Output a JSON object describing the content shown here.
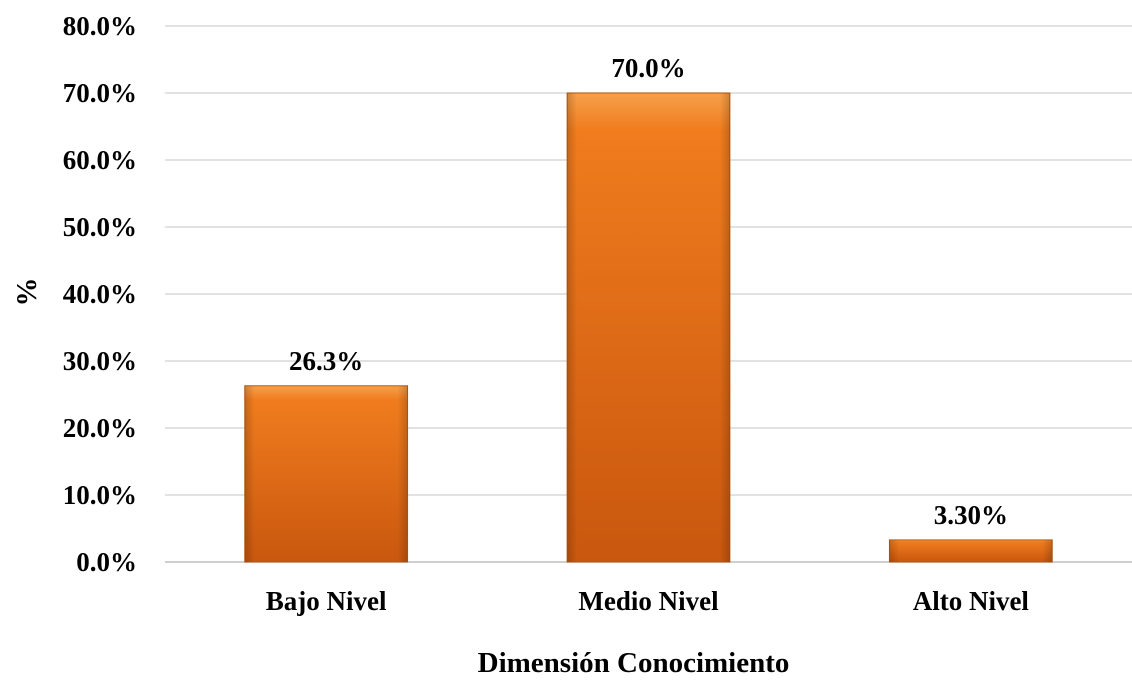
{
  "chart_data": {
    "type": "bar",
    "categories": [
      "Bajo Nivel",
      "Medio Nivel",
      "Alto Nivel"
    ],
    "values": [
      26.3,
      70.0,
      3.3
    ],
    "data_labels": [
      "26.3%",
      "70.0%",
      "3.30%"
    ],
    "xlabel": "Dimensión Conocimiento",
    "ylabel": "%",
    "ylim": [
      0,
      80
    ],
    "yticks": [
      0,
      10,
      20,
      30,
      40,
      50,
      60,
      70,
      80
    ],
    "ytick_labels": [
      "0.0%",
      "10.0%",
      "20.0%",
      "30.0%",
      "40.0%",
      "50.0%",
      "60.0%",
      "70.0%",
      "80.0%"
    ],
    "grid": true,
    "legend": "none",
    "colors": {
      "bar_light": "#f7a04a",
      "bar_main": "#f07c1e",
      "bar_dark": "#c9570e",
      "bar_edge": "#b85a10",
      "grid": "#d9d9d9",
      "axis": "#bfbfbf"
    }
  }
}
